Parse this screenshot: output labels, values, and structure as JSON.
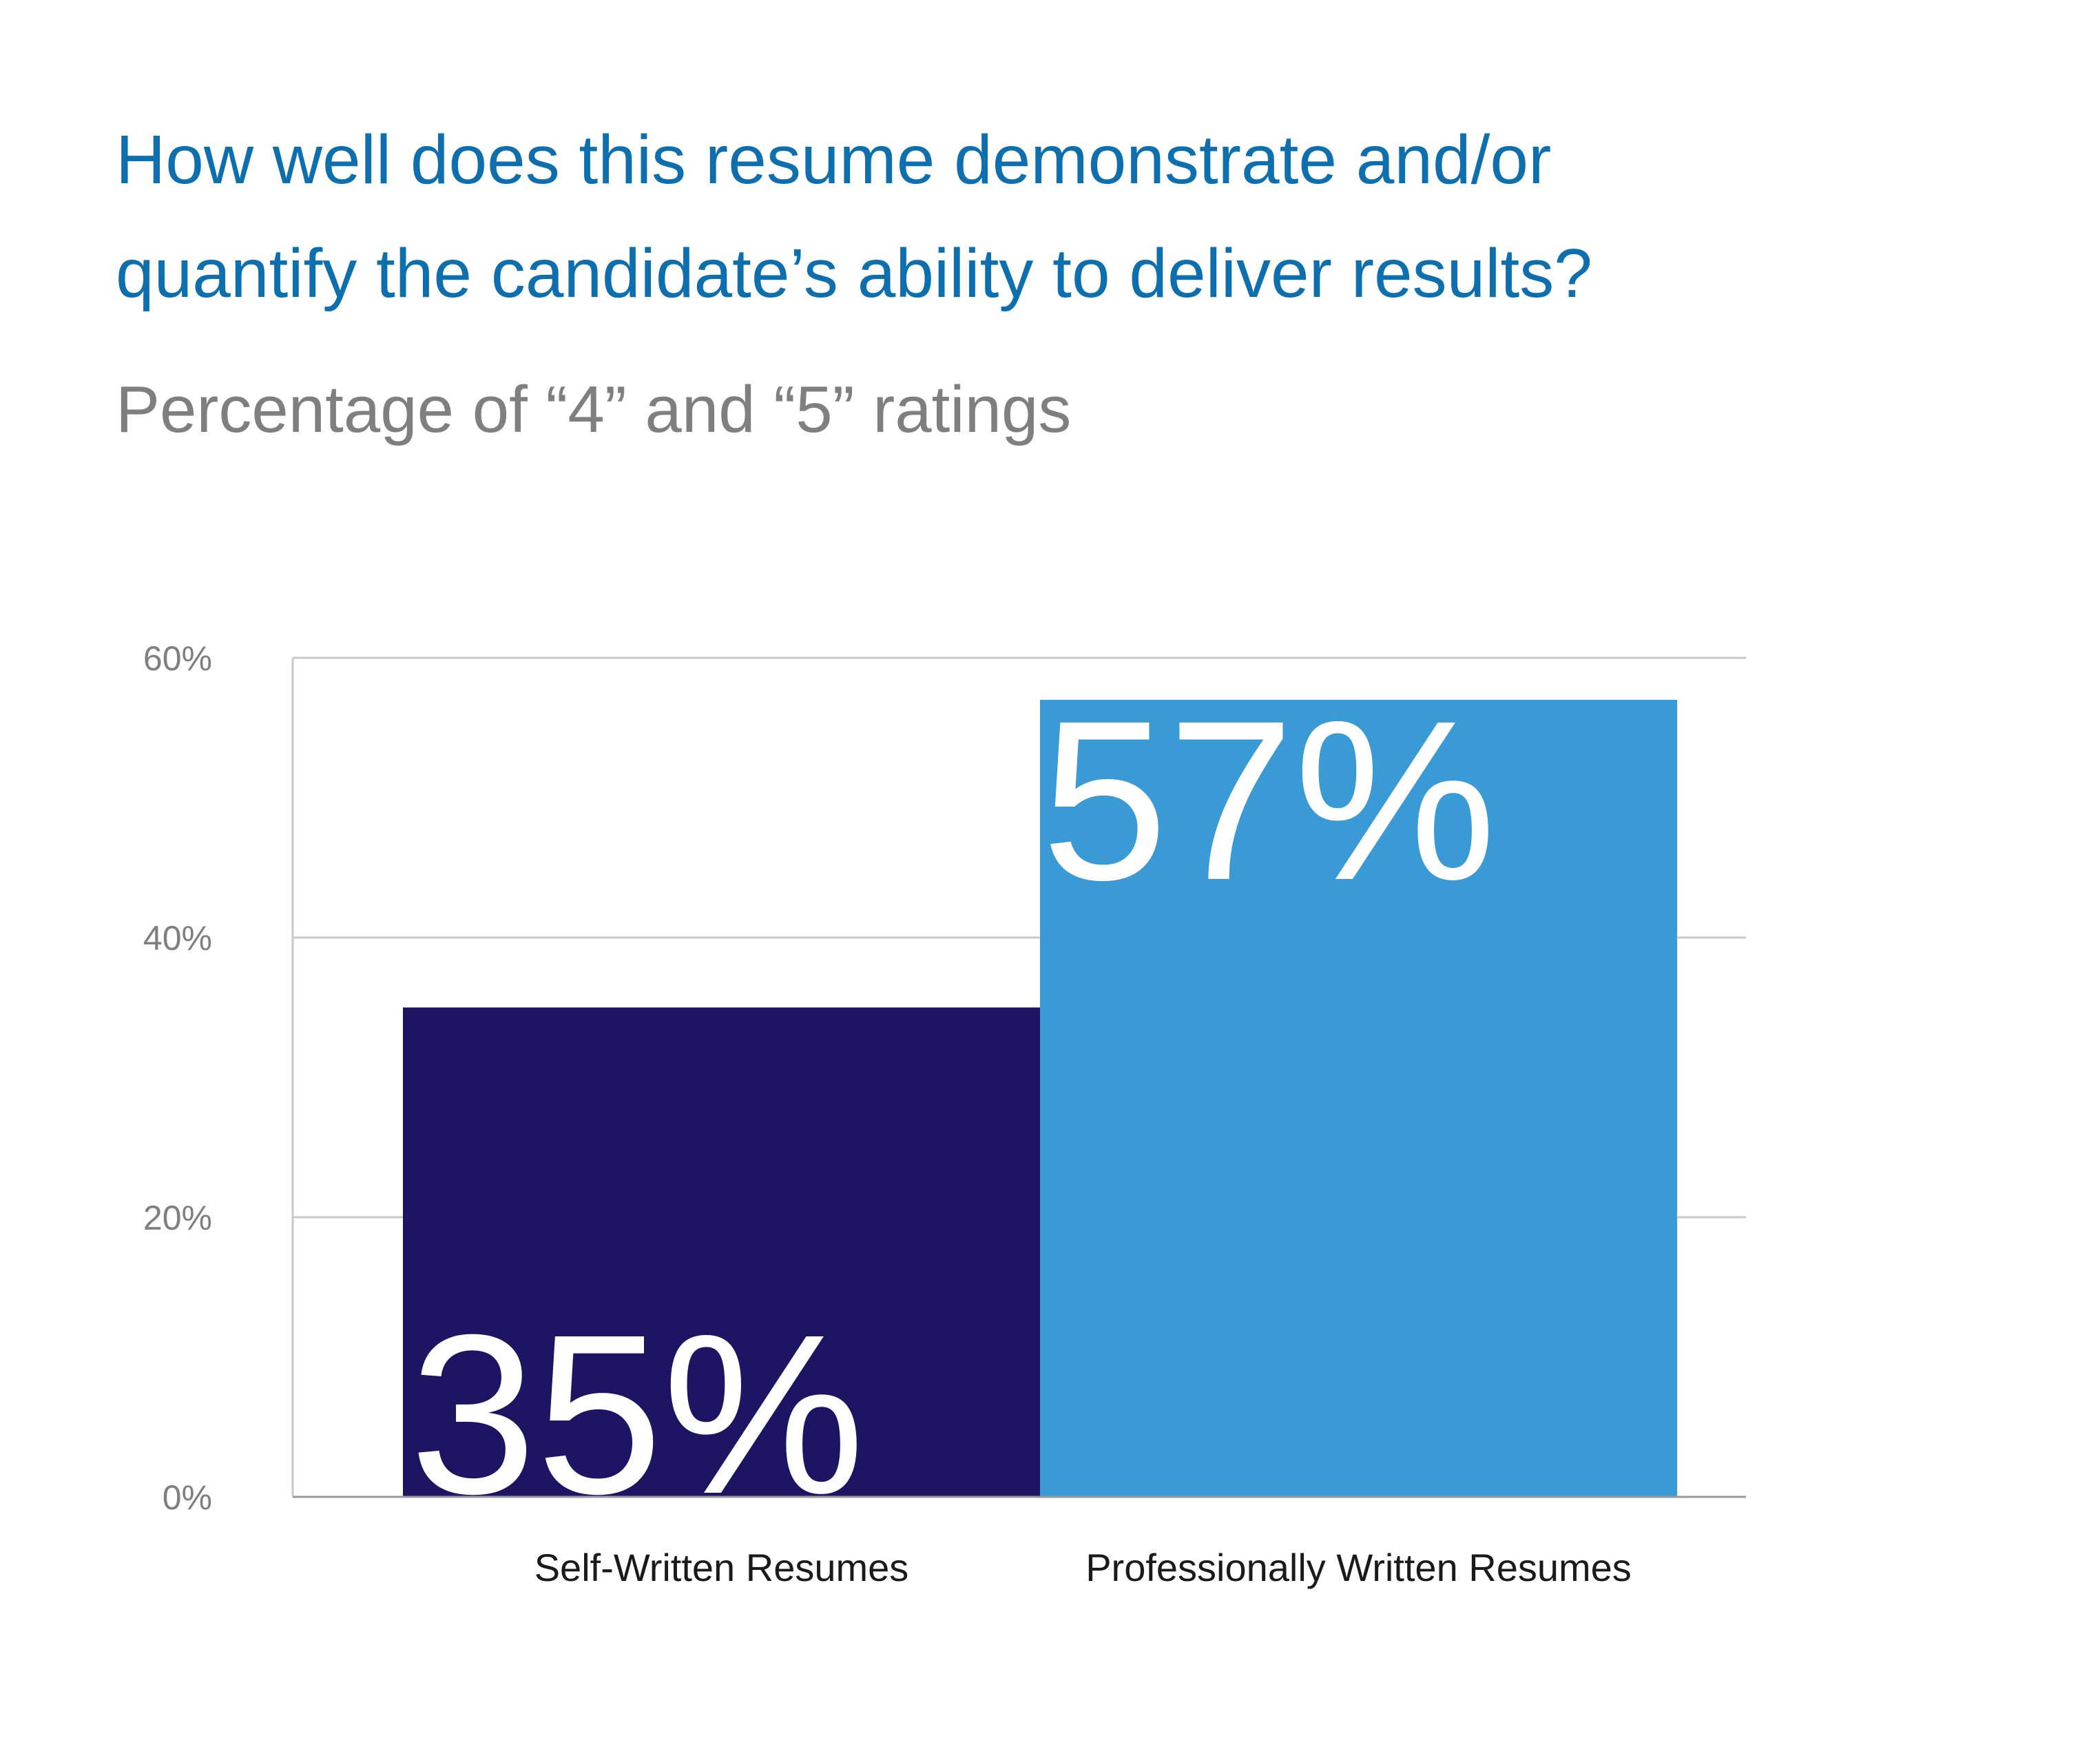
{
  "title_line1": "How well does this resume demonstrate and/or",
  "title_line2": "quantify the candidate’s ability to deliver results?",
  "subtitle": "Percentage of “4” and “5” ratings",
  "colors": {
    "title": "#0d6fad",
    "subtitle": "#7f7f7f",
    "bar_self": "#1d1464",
    "bar_pro": "#3a9ad6",
    "bar_label": "#ffffff",
    "grid": "#c8c8c8",
    "tick_label": "#7f7f7f",
    "category_label": "#1a1a1a"
  },
  "chart_data": {
    "type": "bar",
    "title": "How well does this resume demonstrate and/or quantify the candidate’s ability to deliver results?",
    "subtitle": "Percentage of “4” and “5” ratings",
    "categories": [
      "Self-Written Resumes",
      "Professionally Written Resumes"
    ],
    "values": [
      35,
      57
    ],
    "value_labels": [
      "35%",
      "57%"
    ],
    "ylim": [
      0,
      60
    ],
    "yticks": [
      0,
      20,
      40,
      60
    ],
    "ytick_labels": [
      "0%",
      "20%",
      "40%",
      "60%"
    ],
    "xlabel": "",
    "ylabel": "",
    "grid": true,
    "legend": "none"
  }
}
